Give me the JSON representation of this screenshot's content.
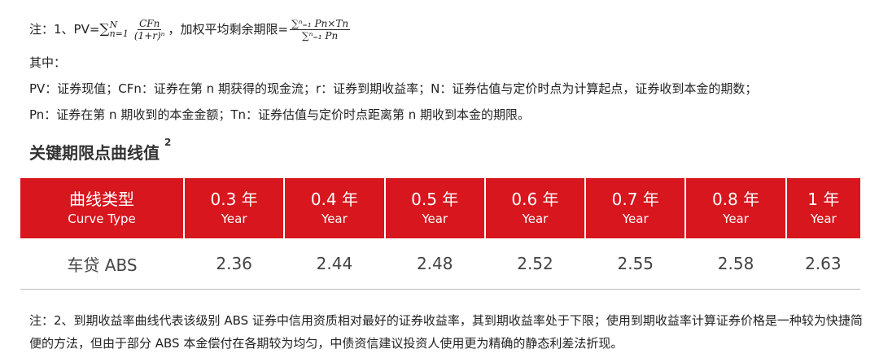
{
  "note1": {
    "prefix": "注：1、PV=",
    "sum_sym": "∑",
    "sum_sub": "n=1",
    "sum_sup": "N",
    "pv_num": "CFn",
    "pv_den": "(1+r)ⁿ",
    "mid_text": "，加权平均剩余期限=",
    "wal_num": "∑ⁿ₌₁ Pn×Tn",
    "wal_den": "∑ⁿ₌₁ Pn"
  },
  "where_label": "其中：",
  "def_line1": "PV：证券现值；CFn：证券在第 n 期获得的现金流；r：证券到期收益率；N：证券估值与定价时点为计算起点，证券收到本金的期数；",
  "def_line2": "Pn：证券在第 n 期收到的本金金额；Tn：证券估值与定价时点距离第 n 期收到本金的期限。",
  "section": {
    "title": "关键期限点曲线值",
    "sup": "2"
  },
  "table": {
    "header_color": "#d7161e",
    "headers": [
      {
        "cn": "曲线类型",
        "en": "Curve Type"
      },
      {
        "cn": "0.3 年",
        "en": "Year"
      },
      {
        "cn": "0.4 年",
        "en": "Year"
      },
      {
        "cn": "0.5 年",
        "en": "Year"
      },
      {
        "cn": "0.6 年",
        "en": "Year"
      },
      {
        "cn": "0.7 年",
        "en": "Year"
      },
      {
        "cn": "0.8 年",
        "en": "Year"
      },
      {
        "cn": "1 年",
        "en": "Year"
      }
    ],
    "row": [
      "车贷 ABS",
      "2.36",
      "2.44",
      "2.48",
      "2.52",
      "2.55",
      "2.58",
      "2.63"
    ]
  },
  "note2": "注：2、到期收益率曲线代表该级别 ABS 证券中信用资质相对最好的证券收益率，其到期收益率处于下限；使用到期收益率计算证券价格是一种较为快捷简便的方法，但由于部分 ABS 本金偿付在各期较为均匀，中债资信建议投资人使用更为精确的静态利差法折现。"
}
